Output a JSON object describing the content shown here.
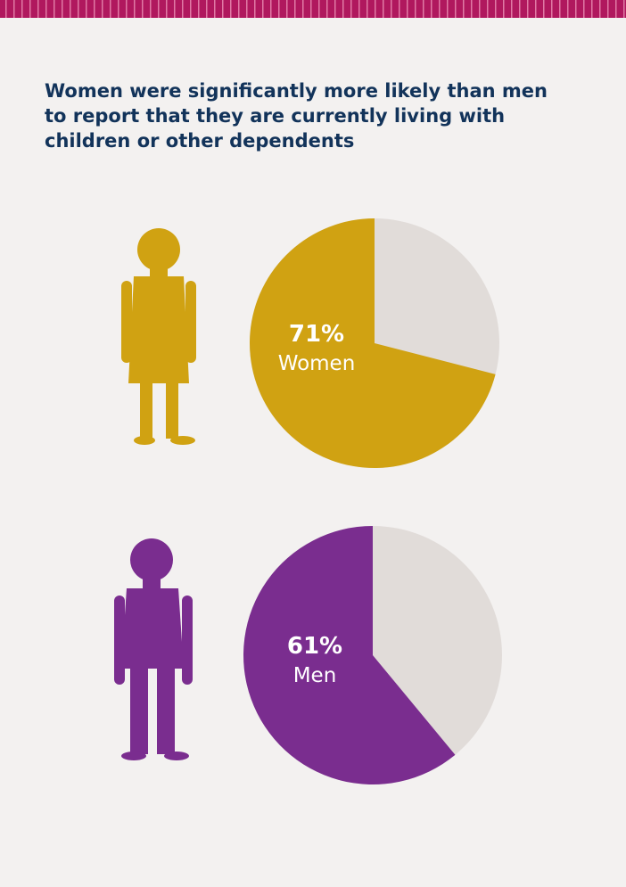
{
  "title": "Women were significantly more likely than men to report that they are currently living with children or other dependents",
  "chart_data": [
    {
      "type": "pie",
      "categories": [
        "Women"
      ],
      "values": [
        71
      ],
      "value_labels": [
        "71%"
      ],
      "color": "#d0a212",
      "rest_color": "#e1dcd9"
    },
    {
      "type": "pie",
      "categories": [
        "Men"
      ],
      "values": [
        61
      ],
      "value_labels": [
        "61%"
      ],
      "color": "#7a2d8f",
      "rest_color": "#e1dcd9"
    }
  ]
}
